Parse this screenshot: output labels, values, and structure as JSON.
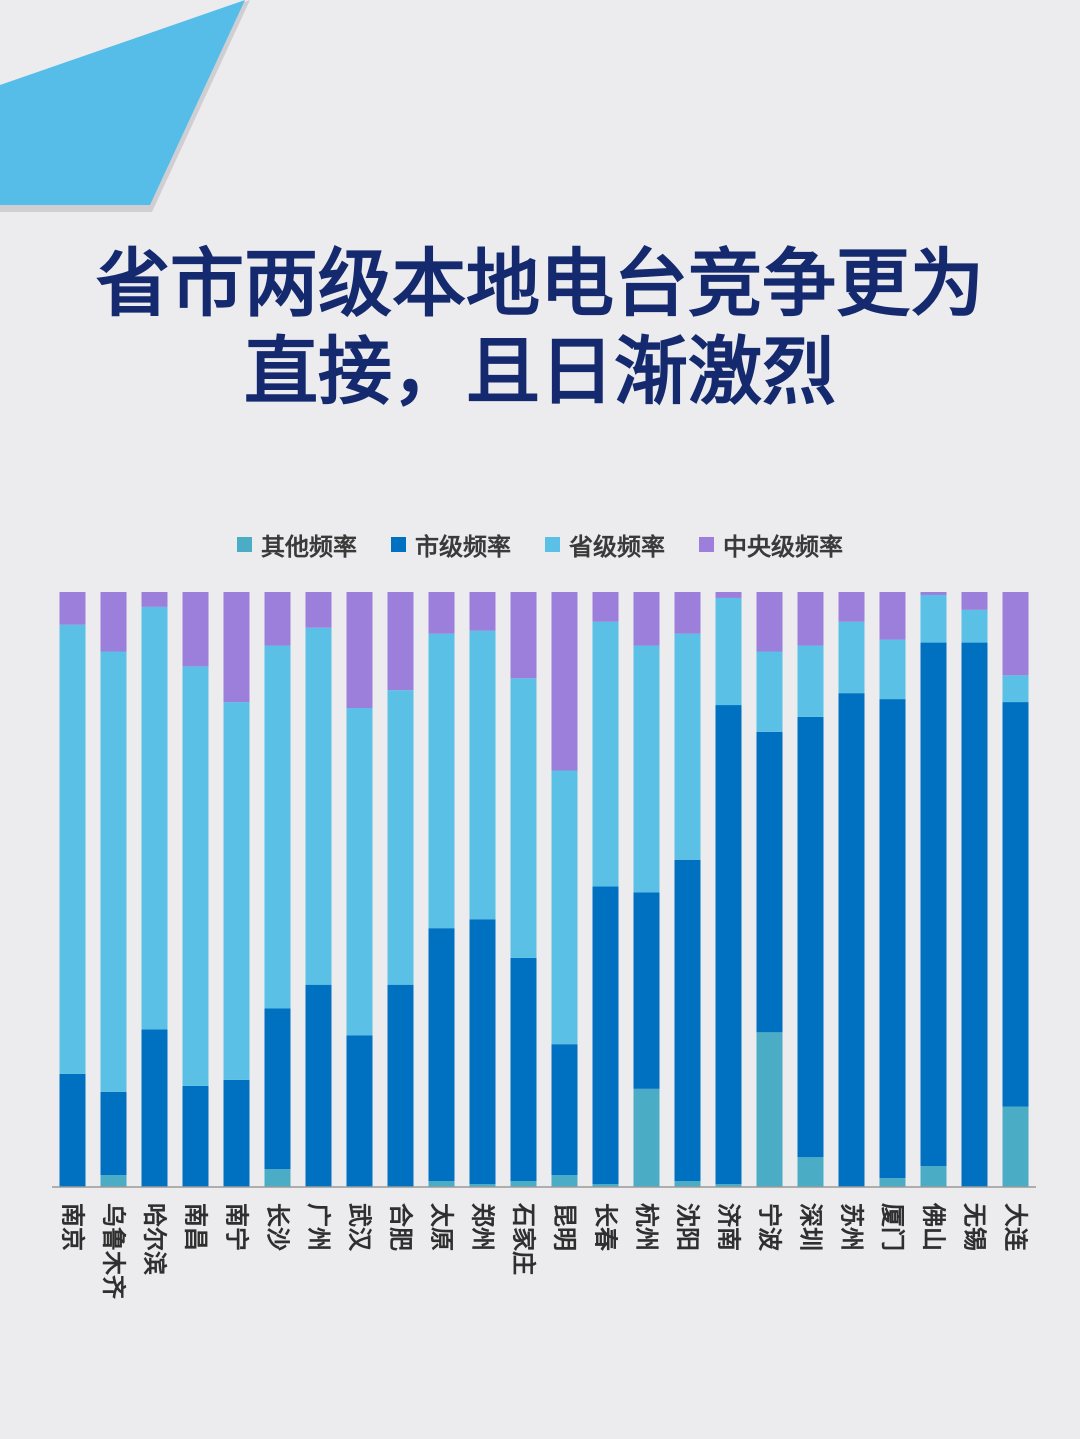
{
  "title": {
    "line1": "省市两级本地电台竞争更为",
    "line2": "直接，且日渐激烈"
  },
  "colors": {
    "other": "#4bacc6",
    "city": "#0070c0",
    "province": "#5bc0e6",
    "central": "#9b7fdb",
    "title": "#152a6e",
    "accent": "#56bde9",
    "background": "#ececee"
  },
  "legend": [
    {
      "key": "other",
      "label": "其他频率"
    },
    {
      "key": "city",
      "label": "市级频率"
    },
    {
      "key": "province",
      "label": "省级频率"
    },
    {
      "key": "central",
      "label": "中央级频率"
    }
  ],
  "chart_data": {
    "type": "bar",
    "stacked": true,
    "normalized": true,
    "ylim": [
      0,
      100
    ],
    "categories": [
      "南京",
      "乌鲁木齐",
      "哈尔滨",
      "南昌",
      "南宁",
      "长沙",
      "广州",
      "武汉",
      "合肥",
      "太原",
      "郑州",
      "石家庄",
      "昆明",
      "长春",
      "杭州",
      "沈阳",
      "济南",
      "宁波",
      "深圳",
      "苏州",
      "厦门",
      "佛山",
      "无锡",
      "大连"
    ],
    "series": [
      {
        "key": "other",
        "name": "其他频率",
        "values": [
          0,
          2,
          0,
          0,
          0,
          3,
          0,
          0,
          0,
          1,
          0.5,
          1,
          2,
          0.5,
          16.5,
          1,
          0.5,
          26,
          5,
          0,
          1.5,
          3.5,
          0,
          13.5
        ]
      },
      {
        "key": "city",
        "name": "市级频率",
        "values": [
          19,
          14,
          26.5,
          17,
          18,
          27,
          34,
          25.5,
          34,
          42.5,
          44.5,
          37.5,
          22,
          50,
          33,
          54,
          80.5,
          50.5,
          74,
          83,
          80.5,
          88,
          91.5,
          68
        ]
      },
      {
        "key": "province",
        "name": "省级频率",
        "values": [
          75.5,
          74,
          71,
          70.5,
          63.5,
          61,
          60,
          55,
          49.5,
          49.5,
          48.5,
          47,
          46,
          44.5,
          41.5,
          38,
          18,
          13.5,
          12,
          12,
          10,
          8,
          5.5,
          4.5
        ]
      },
      {
        "key": "central",
        "name": "中央级频率",
        "values": [
          5.5,
          10,
          2.5,
          12.5,
          18.5,
          9,
          6,
          19.5,
          16.5,
          7,
          6.5,
          14.5,
          30,
          5,
          9,
          7,
          1,
          10,
          9,
          5,
          8,
          0.5,
          3,
          14
        ]
      }
    ]
  }
}
